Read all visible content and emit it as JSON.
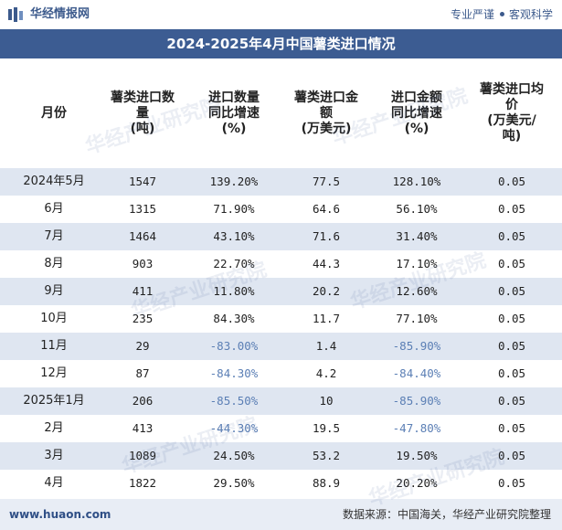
{
  "brand": {
    "name": "华经情报网",
    "slogan_left": "专业严谨",
    "slogan_right": "客观科学",
    "logo_icon": "huajing-logo-icon"
  },
  "title": "2024-2025年4月中国薯类进口情况",
  "table": {
    "headers": [
      "月份",
      "薯类进口数\n量\n(吨)",
      "进口数量\n同比增速\n(%)",
      "薯类进口金\n额\n(万美元)",
      "进口金额\n同比增速\n(%)",
      "薯类进口均\n价\n(万美元/\n吨)"
    ],
    "rows": [
      {
        "month": "2024年5月",
        "qty": "1547",
        "qty_yoy": "139.20%",
        "amount": "77.5",
        "amount_yoy": "128.10%",
        "price": "0.05"
      },
      {
        "month": "6月",
        "qty": "1315",
        "qty_yoy": "71.90%",
        "amount": "64.6",
        "amount_yoy": "56.10%",
        "price": "0.05"
      },
      {
        "month": "7月",
        "qty": "1464",
        "qty_yoy": "43.10%",
        "amount": "71.6",
        "amount_yoy": "31.40%",
        "price": "0.05"
      },
      {
        "month": "8月",
        "qty": "903",
        "qty_yoy": "22.70%",
        "amount": "44.3",
        "amount_yoy": "17.10%",
        "price": "0.05"
      },
      {
        "month": "9月",
        "qty": "411",
        "qty_yoy": "11.80%",
        "amount": "20.2",
        "amount_yoy": "12.60%",
        "price": "0.05"
      },
      {
        "month": "10月",
        "qty": "235",
        "qty_yoy": "84.30%",
        "amount": "11.7",
        "amount_yoy": "77.10%",
        "price": "0.05"
      },
      {
        "month": "11月",
        "qty": "29",
        "qty_yoy": "-83.00%",
        "amount": "1.4",
        "amount_yoy": "-85.90%",
        "price": "0.05"
      },
      {
        "month": "12月",
        "qty": "87",
        "qty_yoy": "-84.30%",
        "amount": "4.2",
        "amount_yoy": "-84.40%",
        "price": "0.05"
      },
      {
        "month": "2025年1月",
        "qty": "206",
        "qty_yoy": "-85.50%",
        "amount": "10",
        "amount_yoy": "-85.90%",
        "price": "0.05"
      },
      {
        "month": "2月",
        "qty": "413",
        "qty_yoy": "-44.30%",
        "amount": "19.5",
        "amount_yoy": "-47.80%",
        "price": "0.05"
      },
      {
        "month": "3月",
        "qty": "1089",
        "qty_yoy": "24.50%",
        "amount": "53.2",
        "amount_yoy": "19.50%",
        "price": "0.05"
      },
      {
        "month": "4月",
        "qty": "1822",
        "qty_yoy": "29.50%",
        "amount": "88.9",
        "amount_yoy": "20.20%",
        "price": "0.05"
      }
    ]
  },
  "footer": {
    "website": "www.huaon.com",
    "source": "数据来源：中国海关，华经产业研究院整理"
  },
  "watermark": {
    "text": "华经产业研究院",
    "url_text": "www.huaon.com"
  },
  "colors": {
    "title_bg": "#3c5c92",
    "stripe": "#dfe6f1",
    "negative": "#5b7fb5",
    "brand": "#3c5a8c"
  }
}
